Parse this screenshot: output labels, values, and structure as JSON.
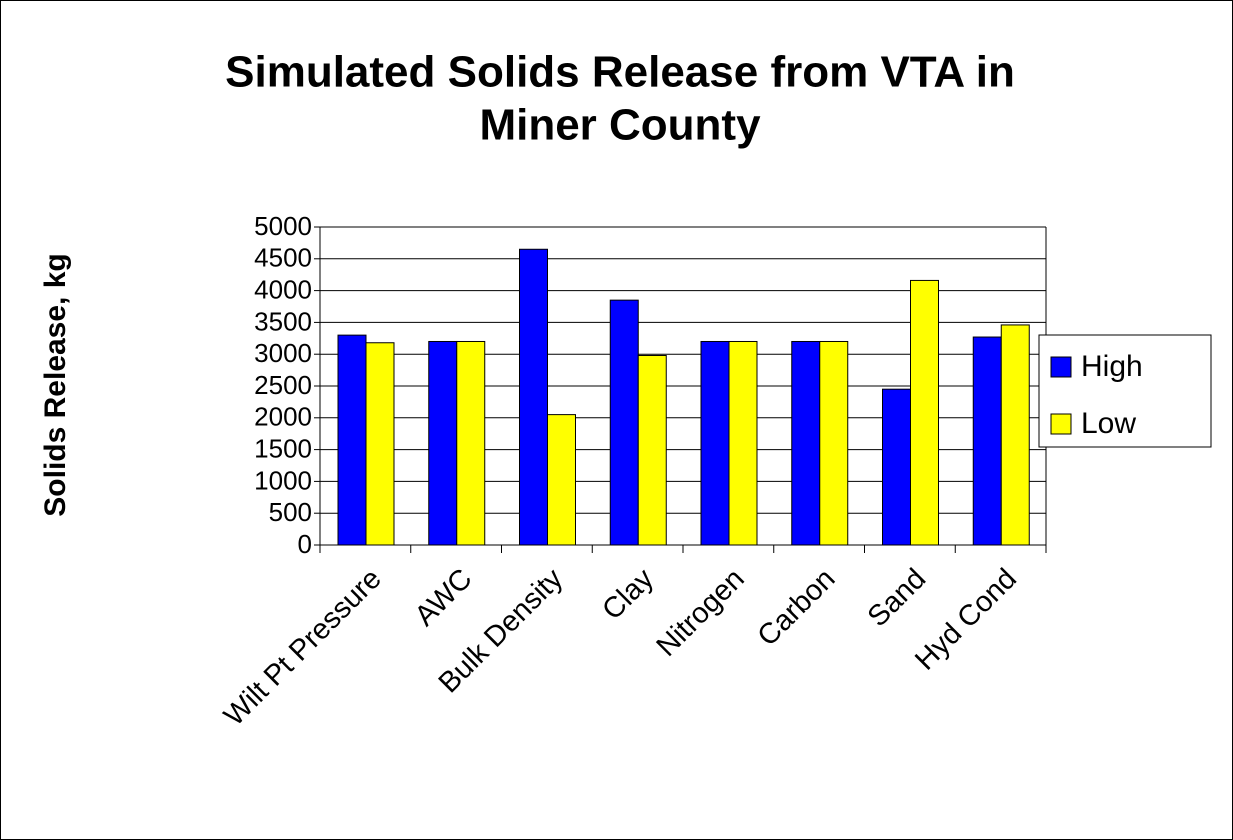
{
  "chart_data": {
    "type": "bar",
    "title": [
      "Simulated Solids Release from VTA in",
      "Miner County"
    ],
    "y_label": "Solids Release, kg",
    "categories": [
      "Wilt Pt Pressure",
      "AWC",
      "Bulk Density",
      "Clay",
      "Nitrogen",
      "Carbon",
      "Sand",
      "Hyd Cond"
    ],
    "series": [
      {
        "name": "High",
        "color": "#0000ff",
        "values": [
          3300,
          3200,
          4650,
          3850,
          3200,
          3200,
          2450,
          3270
        ]
      },
      {
        "name": "Low",
        "color": "#ffff00",
        "values": [
          3180,
          3200,
          2050,
          2980,
          3200,
          3200,
          4160,
          3460
        ]
      }
    ],
    "ylim": [
      0,
      5000
    ],
    "yticks": [
      0,
      500,
      1000,
      1500,
      2000,
      2500,
      3000,
      3500,
      4000,
      4500,
      5000
    ],
    "grid": true,
    "legend": "right"
  }
}
